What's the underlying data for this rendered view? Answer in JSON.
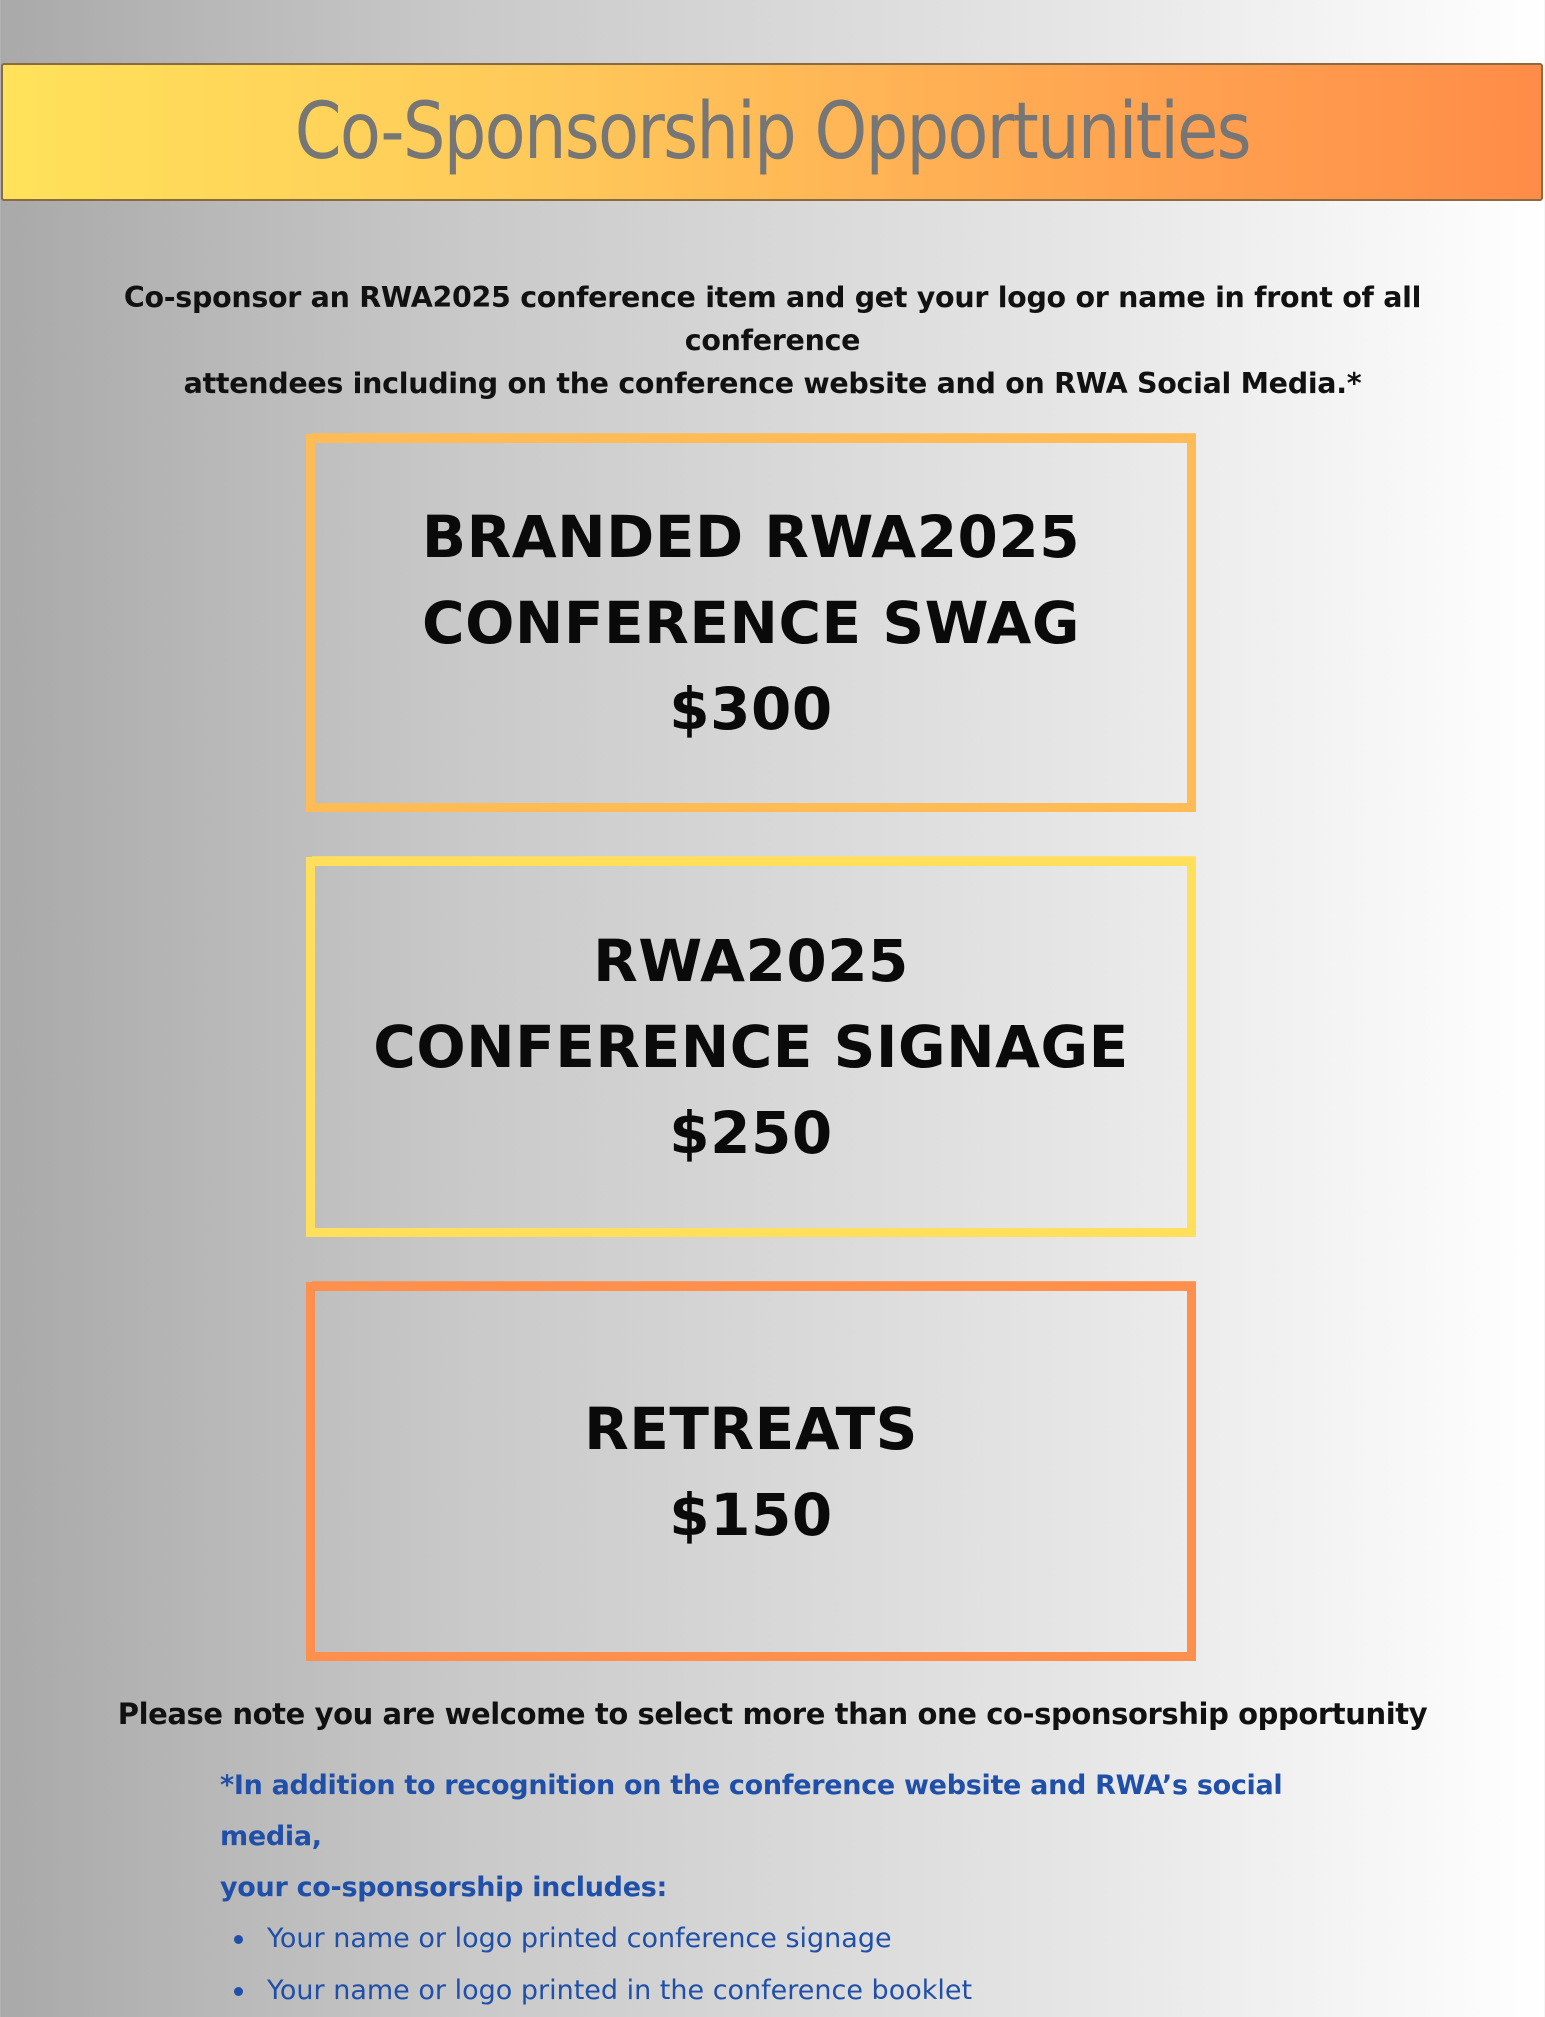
{
  "header": {
    "title": "Co-Sponsorship Opportunities"
  },
  "intro": {
    "line1": "Co-sponsor an RWA2025 conference item and get your logo or name in front of all conference",
    "line2": "attendees including on the conference website and on RWA Social Media.*"
  },
  "options": [
    {
      "line1": "BRANDED RWA2025",
      "line2": "CONFERENCE SWAG",
      "price": "$300",
      "border_color": "#ffbb55"
    },
    {
      "line1": "RWA2025",
      "line2": "CONFERENCE SIGNAGE",
      "price": "$250",
      "border_color": "#ffdf5c"
    },
    {
      "line1": "RETREATS",
      "price": "$150",
      "border_color": "#ff8f4c"
    }
  ],
  "note": "Please note you are welcome to select more than one co-sponsorship opportunity",
  "inclusions": {
    "heading_line1": "*In addition to recognition on the conference website and RWA’s social media,",
    "heading_line2": "your co-sponsorship includes:",
    "items": [
      "Your name or logo printed conference signage",
      "Your name or logo printed in the conference booklet"
    ]
  },
  "colors": {
    "banner_gradient_start": "#ffe25a",
    "banner_gradient_end": "#ff8c48",
    "title_text": "#767676",
    "inclusion_text": "#1f4fa8"
  }
}
